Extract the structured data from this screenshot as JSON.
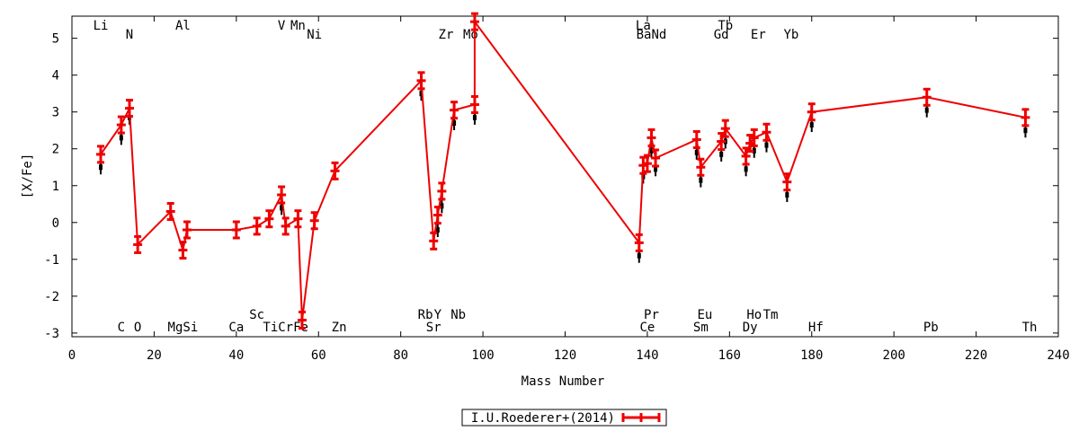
{
  "chart_data": {
    "type": "scatter",
    "xlabel": "Mass Number",
    "ylabel": "[X/Fe]",
    "xlim": [
      0,
      240
    ],
    "ylim": [
      -3.1,
      5.6
    ],
    "x_ticks": [
      0,
      20,
      40,
      60,
      80,
      100,
      120,
      140,
      160,
      180,
      200,
      220,
      240
    ],
    "y_ticks": [
      -3,
      -2,
      -1,
      0,
      1,
      2,
      3,
      4,
      5
    ],
    "grid": false,
    "legend_position": "bottom-center",
    "series": [
      {
        "name": "I.U.Roederer+(2014)",
        "color": "#ee0000",
        "style": "line with error-bar markers",
        "points": [
          {
            "x": 7,
            "y": 1.85
          },
          {
            "x": 12,
            "y": 2.65
          },
          {
            "x": 14,
            "y": 3.1
          },
          {
            "x": 16,
            "y": -0.6
          },
          {
            "x": 24,
            "y": 0.3
          },
          {
            "x": 27,
            "y": -0.75
          },
          {
            "x": 28,
            "y": -0.2
          },
          {
            "x": 40,
            "y": -0.2
          },
          {
            "x": 45,
            "y": -0.1
          },
          {
            "x": 48,
            "y": 0.1
          },
          {
            "x": 51,
            "y": 0.75
          },
          {
            "x": 52,
            "y": -0.1
          },
          {
            "x": 55,
            "y": 0.1
          },
          {
            "x": 56,
            "y": -2.65
          },
          {
            "x": 59,
            "y": 0.05
          },
          {
            "x": 64,
            "y": 1.4
          },
          {
            "x": 85,
            "y": 3.85
          },
          {
            "x": 88,
            "y": -0.5
          },
          {
            "x": 89,
            "y": 0.2
          },
          {
            "x": 90,
            "y": 0.85
          },
          {
            "x": 93,
            "y": 3.05
          },
          {
            "x": 98,
            "y": 3.2
          },
          {
            "x": 98,
            "y": 5.45
          },
          {
            "x": 138,
            "y": -0.55
          },
          {
            "x": 139,
            "y": 1.55
          },
          {
            "x": 140,
            "y": 1.6
          },
          {
            "x": 141,
            "y": 2.3
          },
          {
            "x": 142,
            "y": 1.75
          },
          {
            "x": 152,
            "y": 2.25
          },
          {
            "x": 153,
            "y": 1.5
          },
          {
            "x": 158,
            "y": 2.2
          },
          {
            "x": 159,
            "y": 2.55
          },
          {
            "x": 164,
            "y": 1.8
          },
          {
            "x": 165,
            "y": 2.15
          },
          {
            "x": 166,
            "y": 2.3
          },
          {
            "x": 169,
            "y": 2.45
          },
          {
            "x": 174,
            "y": 1.1
          },
          {
            "x": 180,
            "y": 3.0
          },
          {
            "x": 208,
            "y": 3.4
          },
          {
            "x": 232,
            "y": 2.85
          }
        ]
      },
      {
        "name": "",
        "color": "#000000",
        "style": "error-bar markers",
        "points": [
          {
            "x": 7,
            "y": 1.5
          },
          {
            "x": 12,
            "y": 2.3
          },
          {
            "x": 14,
            "y": 2.85
          },
          {
            "x": 51,
            "y": 0.4
          },
          {
            "x": 85,
            "y": 3.5
          },
          {
            "x": 89,
            "y": -0.2
          },
          {
            "x": 90,
            "y": 0.45
          },
          {
            "x": 93,
            "y": 2.7
          },
          {
            "x": 98,
            "y": 2.85
          },
          {
            "x": 138,
            "y": -0.9
          },
          {
            "x": 139,
            "y": 1.25
          },
          {
            "x": 141,
            "y": 1.95
          },
          {
            "x": 142,
            "y": 1.45
          },
          {
            "x": 152,
            "y": 1.9
          },
          {
            "x": 153,
            "y": 1.15
          },
          {
            "x": 158,
            "y": 1.85
          },
          {
            "x": 159,
            "y": 2.2
          },
          {
            "x": 164,
            "y": 1.45
          },
          {
            "x": 166,
            "y": 1.95
          },
          {
            "x": 169,
            "y": 2.1
          },
          {
            "x": 174,
            "y": 0.75
          },
          {
            "x": 180,
            "y": 2.65
          },
          {
            "x": 208,
            "y": 3.05
          },
          {
            "x": 232,
            "y": 2.5
          }
        ]
      }
    ],
    "annotations": [
      {
        "text": "Li",
        "x": 7,
        "row": "top-1"
      },
      {
        "text": "N",
        "x": 14,
        "row": "top-2"
      },
      {
        "text": "Al",
        "x": 27,
        "row": "top-1"
      },
      {
        "text": "V",
        "x": 51,
        "row": "top-1"
      },
      {
        "text": "Mn",
        "x": 55,
        "row": "top-1"
      },
      {
        "text": "Ni",
        "x": 59,
        "row": "top-2"
      },
      {
        "text": "Zr",
        "x": 91,
        "row": "top-2"
      },
      {
        "text": "Mo",
        "x": 97,
        "row": "top-2"
      },
      {
        "text": "La",
        "x": 139,
        "row": "top-1"
      },
      {
        "text": "BaNd",
        "x": 141,
        "row": "top-2"
      },
      {
        "text": "Tb",
        "x": 159,
        "row": "top-1"
      },
      {
        "text": "Gd",
        "x": 158,
        "row": "top-2"
      },
      {
        "text": "Er",
        "x": 167,
        "row": "top-2"
      },
      {
        "text": "Yb",
        "x": 175,
        "row": "top-2"
      },
      {
        "text": "C",
        "x": 12,
        "row": "bottom-2"
      },
      {
        "text": "O",
        "x": 16,
        "row": "bottom-2"
      },
      {
        "text": "MgSi",
        "x": 27,
        "row": "bottom-2"
      },
      {
        "text": "Ca",
        "x": 40,
        "row": "bottom-2"
      },
      {
        "text": "Sc",
        "x": 45,
        "row": "bottom-1"
      },
      {
        "text": "TiCrFe",
        "x": 52,
        "row": "bottom-2"
      },
      {
        "text": "Zn",
        "x": 65,
        "row": "bottom-2"
      },
      {
        "text": "Rb",
        "x": 86,
        "row": "bottom-1"
      },
      {
        "text": "Y",
        "x": 89,
        "row": "bottom-1"
      },
      {
        "text": "Nb",
        "x": 94,
        "row": "bottom-1"
      },
      {
        "text": "Sr",
        "x": 88,
        "row": "bottom-2"
      },
      {
        "text": "Pr",
        "x": 141,
        "row": "bottom-1"
      },
      {
        "text": "Ce",
        "x": 140,
        "row": "bottom-2"
      },
      {
        "text": "Eu",
        "x": 154,
        "row": "bottom-1"
      },
      {
        "text": "Sm",
        "x": 153,
        "row": "bottom-2"
      },
      {
        "text": "Ho",
        "x": 166,
        "row": "bottom-1"
      },
      {
        "text": "Tm",
        "x": 170,
        "row": "bottom-1"
      },
      {
        "text": "Dy",
        "x": 165,
        "row": "bottom-2"
      },
      {
        "text": "Hf",
        "x": 181,
        "row": "bottom-2"
      },
      {
        "text": "Pb",
        "x": 209,
        "row": "bottom-2"
      },
      {
        "text": "Th",
        "x": 233,
        "row": "bottom-2"
      }
    ]
  }
}
